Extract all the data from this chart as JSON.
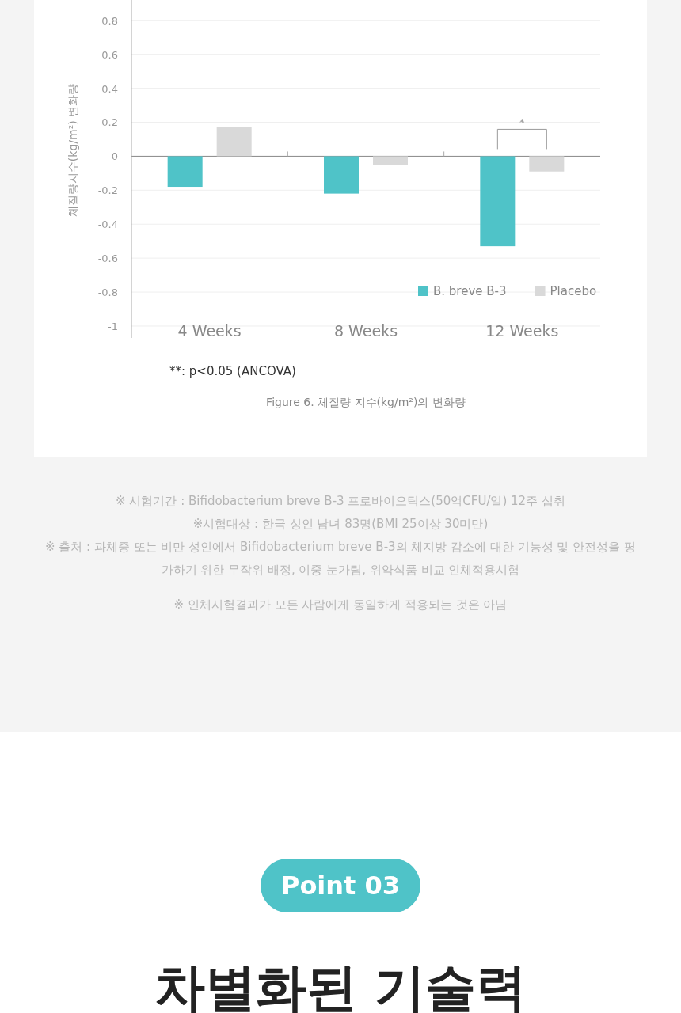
{
  "chart_data": {
    "type": "bar",
    "categories": [
      "4 Weeks",
      "8 Weeks",
      "12 Weeks"
    ],
    "ylabel": "체질량지수(kg/m²) 변화량",
    "title": "Figure 6. 체질량 지수(kg/m²)의 변화량",
    "series": [
      {
        "name": "B. breve B-3",
        "color": "#4fc3c8",
        "values": [
          -0.18,
          -0.22,
          -0.53
        ]
      },
      {
        "name": "Placebo",
        "color": "#d9d9d9",
        "values": [
          0.17,
          -0.05,
          -0.09
        ]
      }
    ],
    "ylim": [
      -1.07,
      0.92
    ],
    "yticks": [
      -1,
      -0.8,
      -0.6,
      -0.4,
      -0.2,
      0,
      0.2,
      0.4,
      0.6,
      0.8
    ],
    "grid": "y",
    "legend": "bottom right",
    "annotations": [
      "*",
      "**: p<0.05 (ANCOVA)",
      "※ 시험기간 : Bifidobacterium breve B-3 프로바이오틱스(50억CFU/일) 12주 섭취",
      "※시험대상 : 한국 성인 남녀 83명(BMI 25이상 30미만)",
      "※ 출처 : 과체중 또는 비만 성인에서 Bifidobacterium breve B-3의 체지방 감소에 대한 기능성 및 안전성을 평가하기 위한 무작위 배정, 이중 눈가림, 위약식품 비교 인체적용시험",
      "※ 인체시험결과가 모든 사람에게 동일하게 적용되는 것은 아님",
      "Point 03",
      "차별화된 기술력"
    ]
  }
}
